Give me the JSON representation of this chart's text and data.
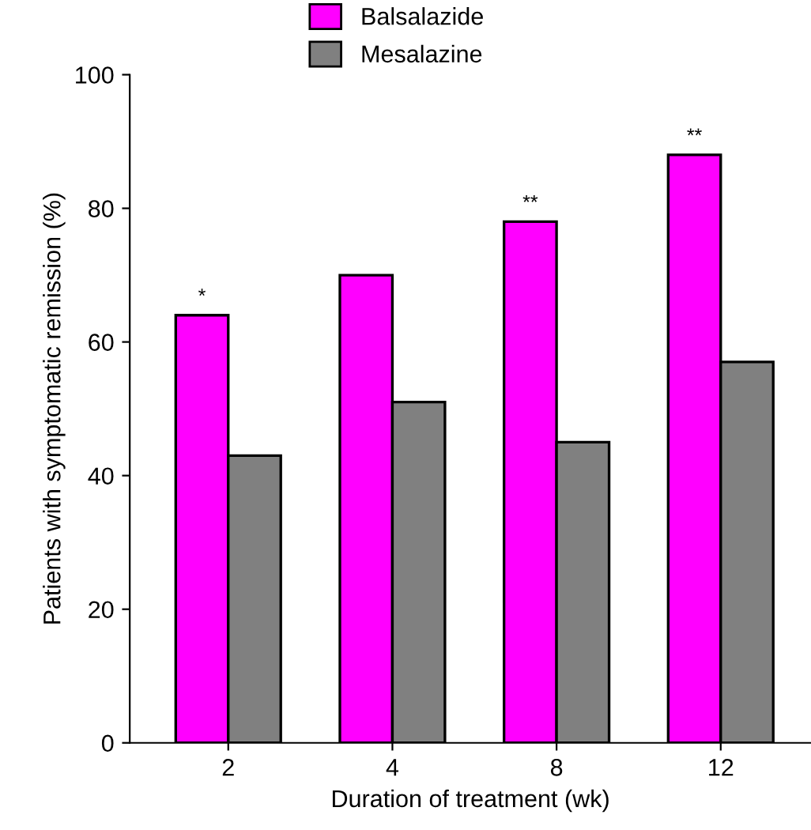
{
  "chart_data": {
    "type": "bar",
    "xlabel": "Duration of treatment (wk)",
    "ylabel": "Patients with symptomatic remission (%)",
    "categories": [
      "2",
      "4",
      "8",
      "12"
    ],
    "series": [
      {
        "name": "Balsalazide",
        "color": "#ff00ff",
        "values": [
          64,
          70,
          78,
          88
        ]
      },
      {
        "name": "Mesalazine",
        "color": "#808080",
        "values": [
          43,
          51,
          45,
          57
        ]
      }
    ],
    "ylim": [
      0,
      100
    ],
    "yticks": [
      0,
      20,
      40,
      60,
      80,
      100
    ],
    "grid": false,
    "legend": "top",
    "annotations": [
      {
        "text": "*",
        "x": "2",
        "y": 64
      },
      {
        "text": "**",
        "x": "8",
        "y": 78
      },
      {
        "text": "**",
        "x": "12",
        "y": 88
      }
    ]
  }
}
